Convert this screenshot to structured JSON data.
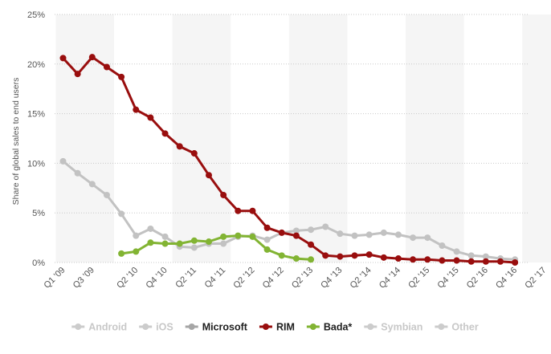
{
  "chart_data": {
    "type": "line",
    "ylabel": "Share of global sales to end users",
    "ylim": [
      0,
      25
    ],
    "y_ticks": [
      0,
      5,
      10,
      15,
      20,
      25
    ],
    "y_tick_labels": [
      "0%",
      "5%",
      "10%",
      "15%",
      "20%",
      "25%"
    ],
    "x": [
      "Q1 '09",
      "Q2 '09",
      "Q3 '09",
      "Q4 '09",
      "Q1 '10",
      "Q2 '10",
      "Q3 '10",
      "Q4 '10",
      "Q1 '11",
      "Q2 '11",
      "Q3 '11",
      "Q4 '11",
      "Q1 '12",
      "Q2 '12",
      "Q3 '12",
      "Q4 '12",
      "Q1 '13",
      "Q2 '13",
      "Q3 '13",
      "Q4 '13",
      "Q1 '14",
      "Q2 '14",
      "Q3 '14",
      "Q4 '14",
      "Q1 '15",
      "Q2 '15",
      "Q3 '15",
      "Q4 '15",
      "Q1 '16",
      "Q2 '16",
      "Q3 '16",
      "Q4 '16",
      "Q1 '17",
      "Q2 '17"
    ],
    "x_tick_labels": [
      "Q1 '09",
      "Q3 '09",
      "Q2 '10",
      "Q4 '10",
      "Q2 '11",
      "Q4 '11",
      "Q2 '12",
      "Q4 '12",
      "Q2 '13",
      "Q4 '13",
      "Q2 '14",
      "Q4 '14",
      "Q2 '15",
      "Q4 '15",
      "Q2 '16",
      "Q4 '16",
      "Q2 '17"
    ],
    "grid": "horizontal-dotted",
    "legend_position": "bottom",
    "series": [
      {
        "name": "Microsoft",
        "color": "#c2c2c2",
        "values": [
          10.2,
          9.0,
          7.9,
          6.8,
          4.9,
          2.7,
          3.4,
          2.6,
          1.6,
          1.5,
          1.9,
          1.9,
          2.6,
          2.7,
          2.3,
          3.0,
          3.2,
          3.3,
          3.6,
          2.9,
          2.7,
          2.8,
          3.0,
          2.8,
          2.5,
          2.5,
          1.7,
          1.1,
          0.7,
          0.6,
          0.4,
          0.3,
          null,
          null
        ]
      },
      {
        "name": "RIM",
        "color": "#990e0e",
        "values": [
          20.6,
          19.0,
          20.7,
          19.7,
          18.7,
          15.4,
          14.6,
          13.0,
          11.7,
          11.0,
          8.8,
          6.8,
          5.2,
          5.2,
          3.5,
          3.0,
          2.7,
          1.8,
          0.7,
          0.6,
          0.7,
          0.8,
          0.5,
          0.4,
          0.3,
          0.3,
          0.2,
          0.2,
          0.1,
          0.1,
          0.1,
          0.0,
          null,
          null
        ]
      },
      {
        "name": "Bada*",
        "color": "#82b433",
        "values": [
          null,
          null,
          null,
          null,
          0.9,
          1.1,
          2.0,
          1.9,
          1.9,
          2.2,
          2.1,
          2.6,
          2.7,
          2.6,
          1.3,
          0.7,
          0.4,
          0.3,
          null,
          null,
          null,
          null,
          null,
          null,
          null,
          null,
          null,
          null,
          null,
          null,
          null,
          null,
          null,
          null
        ]
      }
    ],
    "legend": [
      {
        "label": "Android",
        "color": "#cccccc"
      },
      {
        "label": "iOS",
        "color": "#cccccc"
      },
      {
        "label": "Microsoft",
        "color": "#a6a6a6"
      },
      {
        "label": "RIM",
        "color": "#990e0e"
      },
      {
        "label": "Bada*",
        "color": "#82b433"
      },
      {
        "label": "Symbian",
        "color": "#cccccc"
      },
      {
        "label": "Other",
        "color": "#cccccc"
      }
    ],
    "colors": {
      "band": "#f5f5f5",
      "grid": "#c9c9c9",
      "legend_text_active": "#1e1e1e",
      "legend_text_inactive": "#c8c8c8"
    }
  }
}
